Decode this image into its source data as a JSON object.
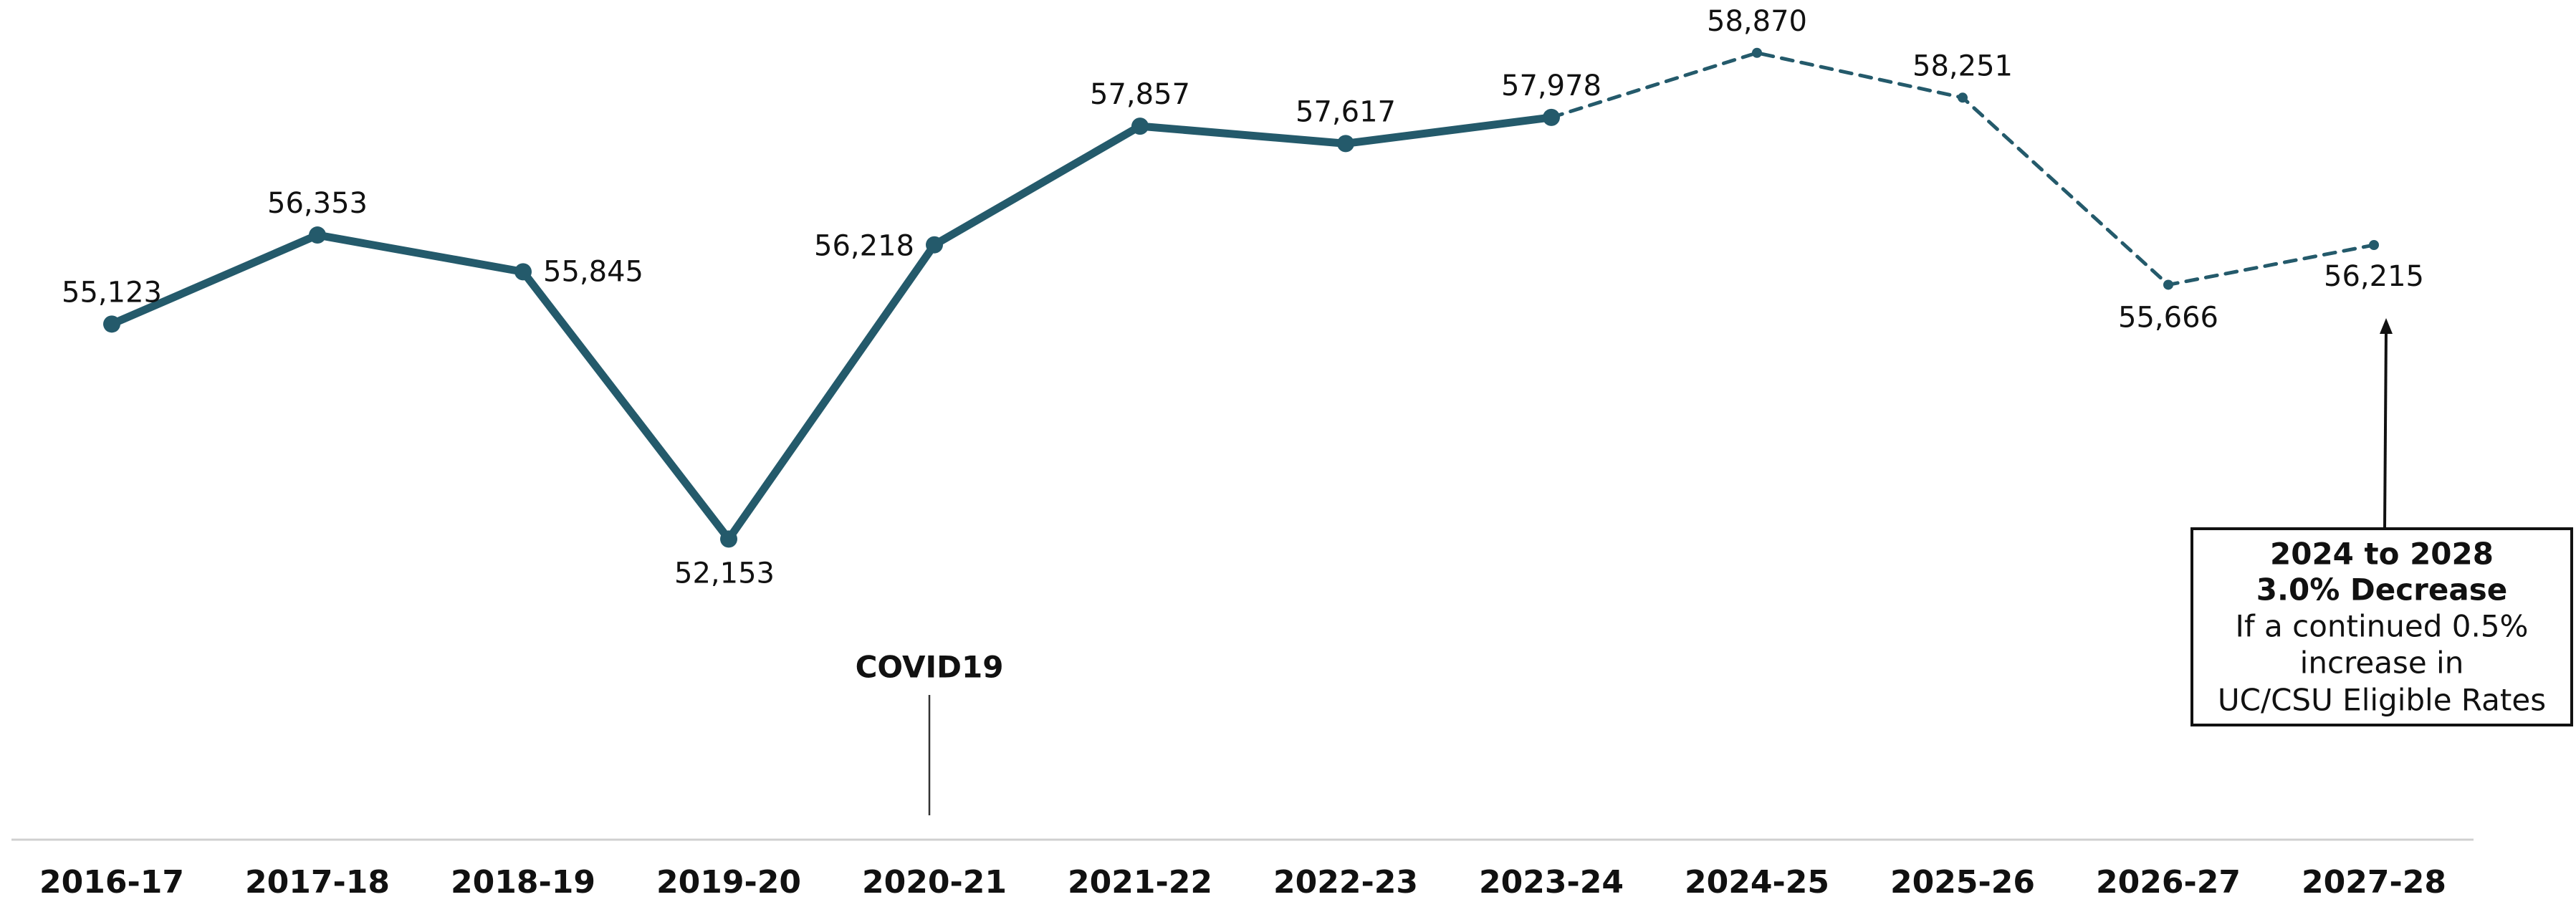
{
  "chart_data": {
    "type": "line",
    "categories": [
      "2016-17",
      "2017-18",
      "2018-19",
      "2019-20",
      "2020-21",
      "2021-22",
      "2022-23",
      "2023-24",
      "2024-25",
      "2025-26",
      "2026-27",
      "2027-28"
    ],
    "series": [
      {
        "color": "#245a6b",
        "style": "solid",
        "values": [
          55123,
          56353,
          55845,
          52153,
          56218,
          57857,
          57617,
          57978,
          null,
          null,
          null,
          null
        ],
        "value_labels": [
          "55,123",
          "56,353",
          "55,845",
          "52,153",
          "56,218",
          "57,857",
          "57,617",
          "57,978",
          null,
          null,
          null,
          null
        ]
      },
      {
        "color": "#245a6b",
        "style": "dashed",
        "values": [
          null,
          null,
          null,
          null,
          null,
          null,
          null,
          57978,
          58870,
          58251,
          55666,
          56215
        ],
        "value_labels": [
          null,
          null,
          null,
          null,
          null,
          null,
          null,
          null,
          "58,870",
          "58,251",
          "55,666",
          "56,215"
        ]
      }
    ],
    "ylim": [
      48000,
      59600
    ],
    "annotations": [
      {
        "category": 4,
        "text": "COVID19"
      },
      {
        "category": 11,
        "lines": [
          "2024 to 2028",
          "3.0% Decrease",
          "If a continued 0.5%",
          "increase in",
          "UC/CSU Eligible Rates"
        ]
      }
    ]
  }
}
